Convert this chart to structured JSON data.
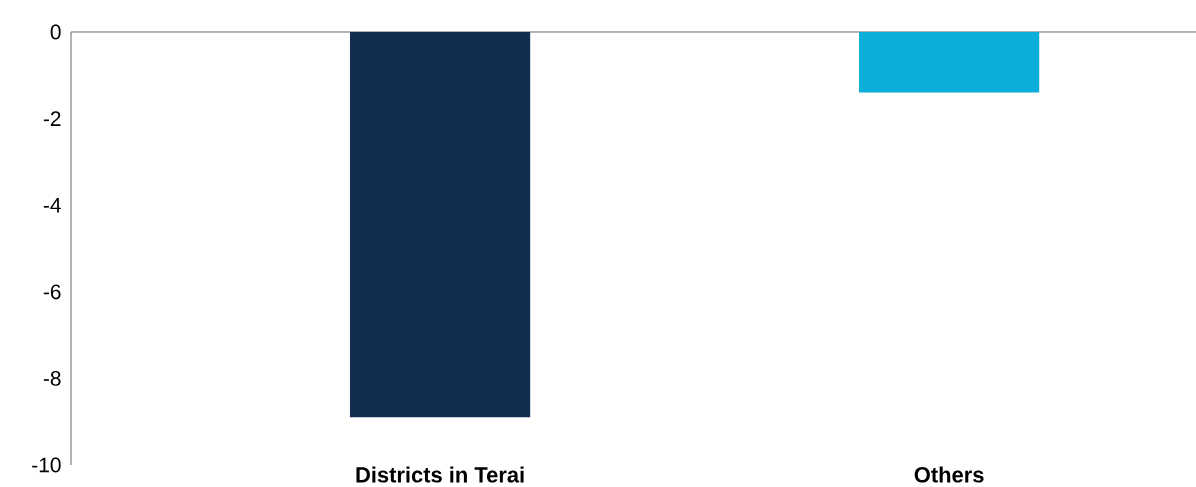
{
  "chart_data": {
    "type": "bar",
    "categories": [
      "Districts in Terai",
      "Others"
    ],
    "values": [
      -8.9,
      -1.4
    ],
    "colors": [
      "#112e51",
      "#0aaed8"
    ],
    "ylim": [
      -10,
      0
    ],
    "yticks": [
      -10,
      -8,
      -6,
      -4,
      -2,
      0
    ],
    "grid": false
  }
}
